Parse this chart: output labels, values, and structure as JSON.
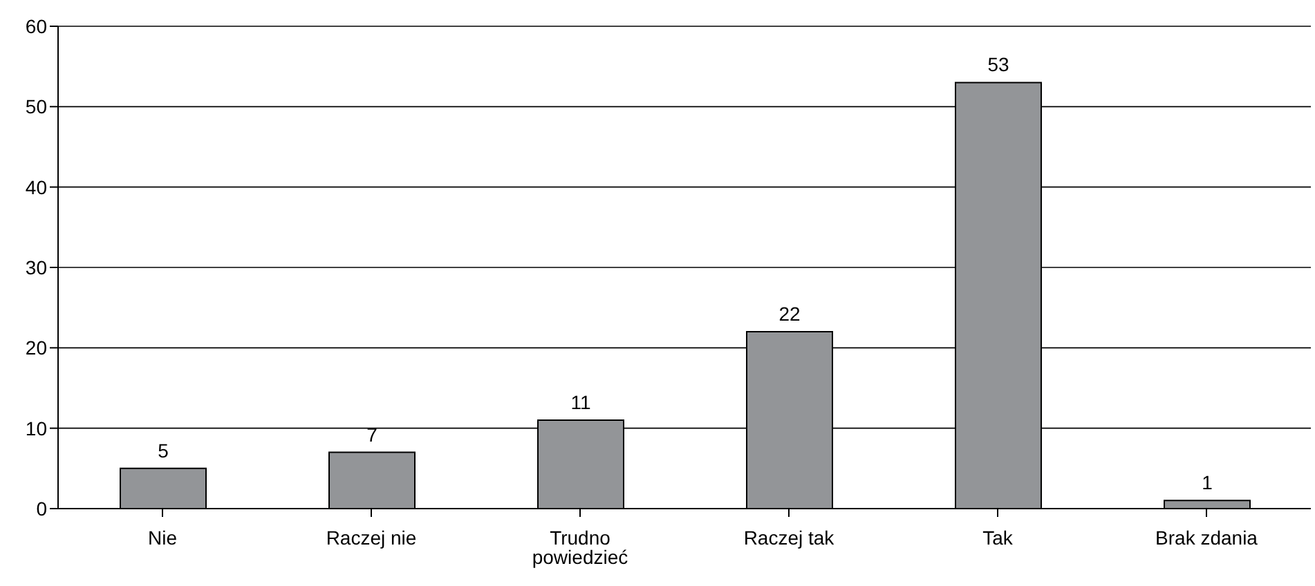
{
  "chart_data": {
    "type": "bar",
    "categories": [
      "Nie",
      "Raczej nie",
      "Trudno powiedzieć",
      "Raczej tak",
      "Tak",
      "Brak zdania"
    ],
    "values": [
      5,
      7,
      11,
      22,
      53,
      1
    ],
    "color": "#939598",
    "ylim": [
      0,
      60
    ],
    "yticks": [
      0,
      10,
      20,
      30,
      40,
      50,
      60
    ],
    "grid": "y",
    "data_labels": true
  }
}
